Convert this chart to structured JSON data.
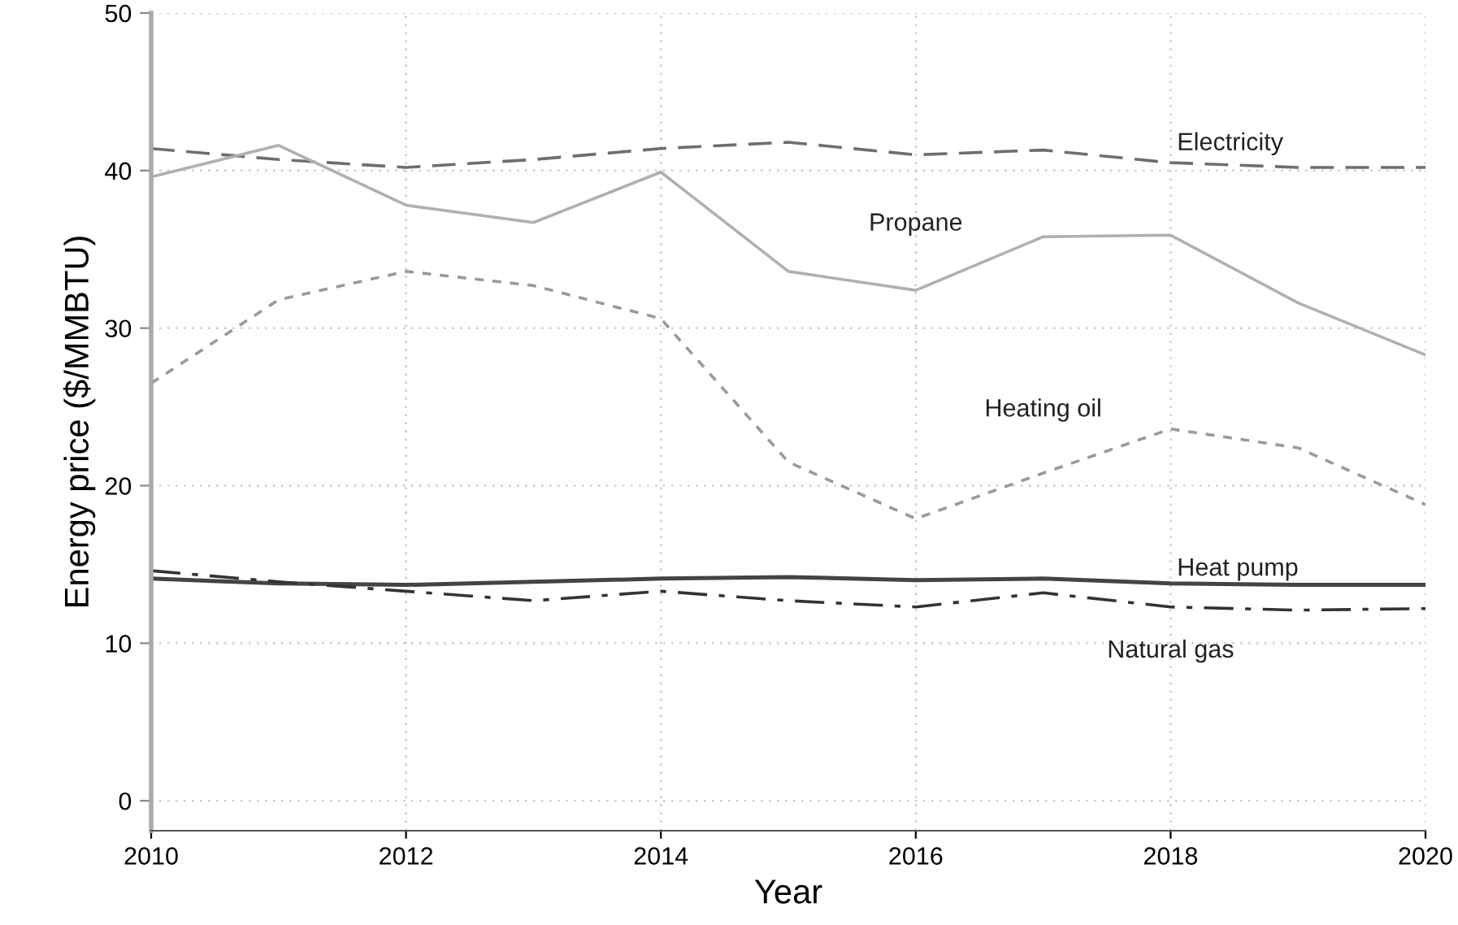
{
  "chart_data": {
    "type": "line",
    "xlabel": "Year",
    "ylabel": "Energy price ($/MMBTU)",
    "x": [
      2010,
      2011,
      2012,
      2013,
      2014,
      2015,
      2016,
      2017,
      2018,
      2019,
      2020
    ],
    "series": [
      {
        "name": "Electricity",
        "color": "#6e6e6e",
        "line_style": "dashed",
        "values": [
          41.4,
          40.7,
          40.2,
          40.7,
          41.4,
          41.8,
          41.0,
          41.3,
          40.5,
          40.2,
          40.2
        ]
      },
      {
        "name": "Propane",
        "color": "#b0b0b0",
        "line_style": "solid",
        "values": [
          39.6,
          41.6,
          37.8,
          36.7,
          39.9,
          33.6,
          32.4,
          35.8,
          35.9,
          31.6,
          28.3
        ]
      },
      {
        "name": "Heating oil",
        "color": "#9a9a9a",
        "line_style": "dotted",
        "values": [
          26.5,
          31.8,
          33.6,
          32.7,
          30.6,
          21.5,
          17.9,
          20.8,
          23.6,
          22.4,
          18.8
        ]
      },
      {
        "name": "Heat pump",
        "color": "#444444",
        "line_style": "solid",
        "values": [
          14.1,
          13.8,
          13.7,
          13.9,
          14.1,
          14.2,
          14.0,
          14.1,
          13.8,
          13.7,
          13.7
        ]
      },
      {
        "name": "Natural gas",
        "color": "#333333",
        "line_style": "dashdot",
        "values": [
          14.6,
          13.9,
          13.3,
          12.7,
          13.3,
          12.7,
          12.3,
          13.2,
          12.3,
          12.1,
          12.2
        ]
      }
    ],
    "xlim": [
      2010,
      2020
    ],
    "ylim": [
      -1.9,
      50
    ],
    "xticks": [
      2010,
      2012,
      2014,
      2016,
      2018,
      2020
    ],
    "yticks": [
      0,
      10,
      20,
      30,
      40,
      50
    ],
    "grid": true,
    "legend": false,
    "marker": "none"
  }
}
